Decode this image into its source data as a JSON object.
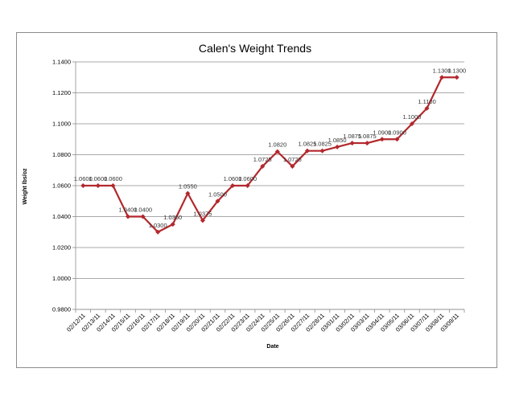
{
  "chart_data": {
    "type": "line",
    "title": "Calen's Weight Trends",
    "xlabel": "Date",
    "ylabel": "Weight lbs/oz",
    "ylim": [
      0.98,
      1.14
    ],
    "yticks": [
      "0.9800",
      "1.0000",
      "1.0200",
      "1.0400",
      "1.0600",
      "1.0800",
      "1.1000",
      "1.1200",
      "1.1400"
    ],
    "grid": true,
    "legend": "none",
    "line_color": "#b3282d",
    "categories": [
      "02/12/11",
      "02/13/11",
      "02/14/11",
      "02/15/11",
      "02/16/11",
      "02/17/11",
      "02/18/11",
      "02/19/11",
      "02/20/11",
      "02/21/11",
      "02/22/11",
      "02/23/11",
      "02/24/11",
      "02/25/11",
      "02/26/11",
      "02/27/11",
      "02/28/11",
      "03/01/11",
      "03/02/11",
      "03/03/11",
      "03/04/11",
      "03/05/11",
      "03/06/11",
      "03/07/11",
      "03/08/11",
      "03/09/11"
    ],
    "values": [
      1.06,
      1.06,
      1.06,
      1.04,
      1.04,
      1.03,
      1.035,
      1.055,
      1.0375,
      1.05,
      1.06,
      1.06,
      1.0725,
      1.082,
      1.0725,
      1.0825,
      1.0825,
      1.085,
      1.0875,
      1.0875,
      1.09,
      1.09,
      1.1,
      1.11,
      1.13,
      1.13
    ],
    "data_labels": [
      "1.0600",
      "1.0600",
      "1.0600",
      "1.0400",
      "1.0400",
      "1.0300",
      "1.0350",
      "1.0550",
      "1.0375",
      "1.0500",
      "1.0600",
      "1.0600",
      "1.0725",
      "1.0820",
      "1.0725",
      "1.0825",
      "1.0825",
      "1.0850",
      "1.0875",
      "1.0875",
      "1.0900",
      "1.0900",
      "1.1000",
      "1.1100",
      "1.1300",
      "1.1300"
    ]
  }
}
